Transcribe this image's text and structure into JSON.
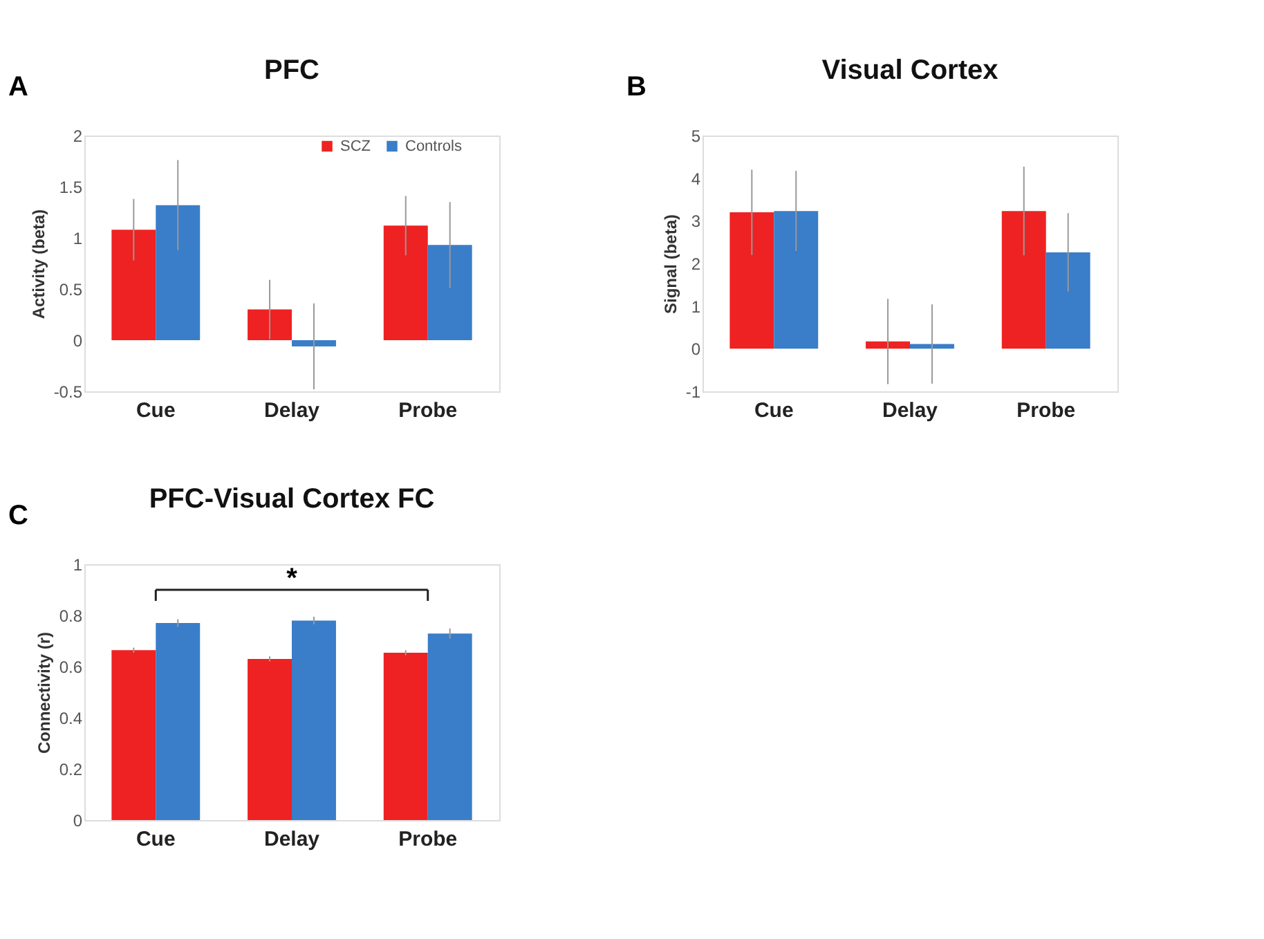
{
  "chart_data": [
    {
      "type": "bar",
      "title": "PFC",
      "ylabel": "Activity (beta)",
      "categories": [
        "Cue",
        "Delay",
        "Probe"
      ],
      "ylim": [
        -0.5,
        2
      ],
      "yticks": [
        -0.5,
        0,
        0.5,
        1,
        1.5,
        2
      ],
      "grid": false,
      "legend": "top right",
      "annotations": [
        "A"
      ],
      "series": [
        {
          "name": "SCZ",
          "color": "#ee2222",
          "values": [
            1.08,
            0.3,
            1.12
          ],
          "errors": [
            0.3,
            0.29,
            0.29
          ]
        },
        {
          "name": "Controls",
          "color": "#3a7dc9",
          "values": [
            1.32,
            -0.06,
            0.93
          ],
          "errors": [
            0.44,
            0.42,
            0.42
          ]
        }
      ]
    },
    {
      "type": "bar",
      "title": "Visual Cortex",
      "ylabel": "Signal (beta)",
      "categories": [
        "Cue",
        "Delay",
        "Probe"
      ],
      "ylim": [
        -1,
        5
      ],
      "yticks": [
        -1,
        0,
        1,
        2,
        3,
        4,
        5
      ],
      "grid": false,
      "legend": false,
      "annotations": [
        "B"
      ],
      "series": [
        {
          "color": "#ee2222",
          "values": [
            3.2,
            0.17,
            3.23
          ],
          "errors": [
            1.0,
            1.0,
            1.04
          ]
        },
        {
          "color": "#3a7dc9",
          "values": [
            3.23,
            0.11,
            2.26
          ],
          "errors": [
            0.94,
            0.93,
            0.92
          ]
        }
      ]
    },
    {
      "type": "bar",
      "title": "PFC-Visual Cortex FC",
      "ylabel": "Connectivity (r)",
      "categories": [
        "Cue",
        "Delay",
        "Probe"
      ],
      "ylim": [
        0,
        1
      ],
      "yticks": [
        0,
        0.2,
        0.4,
        0.6,
        0.8,
        1
      ],
      "grid": false,
      "legend": false,
      "annotations": [
        "C",
        "*"
      ],
      "series": [
        {
          "color": "#ee2222",
          "values": [
            0.664,
            0.63,
            0.654
          ],
          "errors": [
            0.01,
            0.01,
            0.01
          ]
        },
        {
          "color": "#3a7dc9",
          "values": [
            0.77,
            0.78,
            0.729
          ],
          "errors": [
            0.015,
            0.015,
            0.02
          ]
        }
      ]
    }
  ]
}
